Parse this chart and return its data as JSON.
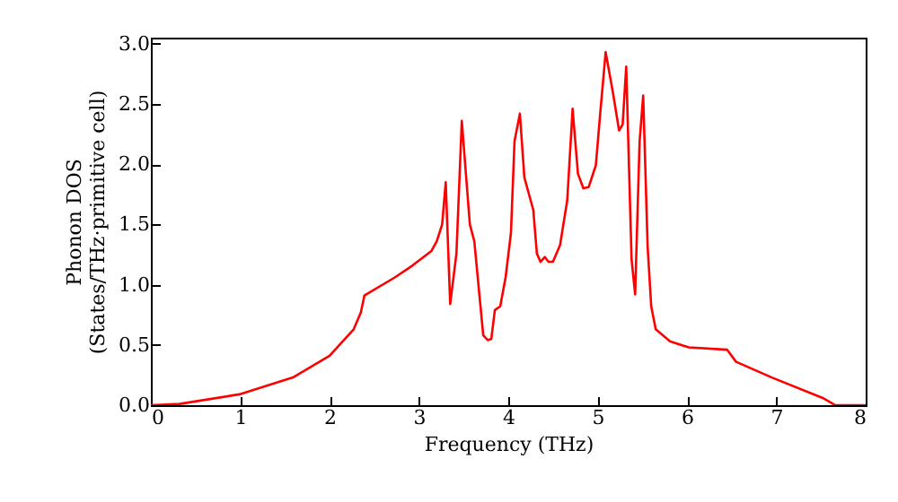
{
  "chart_data": {
    "type": "line",
    "xlabel": "Frequency (THz)",
    "ylabel": "Phonon DOS\n(States/THz·primitive cell)",
    "xlim": [
      0,
      8
    ],
    "xticks": [
      0,
      1,
      2,
      3,
      4,
      5,
      6,
      7,
      8
    ],
    "ylim": [
      0,
      3.05
    ],
    "yticks": [
      {
        "value": 0,
        "label": "0.0"
      },
      {
        "value": 0.5,
        "label": "0.5"
      },
      {
        "value": 1,
        "label": "1.0"
      },
      {
        "value": 1.5,
        "label": "1.5"
      },
      {
        "value": 2,
        "label": "2.0"
      },
      {
        "value": 2.5,
        "label": "2.5"
      },
      {
        "value": 3,
        "label": "3.0"
      }
    ],
    "grid": false,
    "marker": "none",
    "line_style": "solid",
    "series": [
      {
        "color": "#ff0000",
        "x": [
          0,
          0.32,
          0.99,
          1.59,
          2.0,
          2.27,
          2.35,
          2.39,
          2.73,
          2.93,
          3.14,
          3.2,
          3.26,
          3.3,
          3.35,
          3.42,
          3.48,
          3.57,
          3.62,
          3.72,
          3.77,
          3.81,
          3.85,
          3.91,
          3.97,
          4.03,
          4.07,
          4.13,
          4.18,
          4.28,
          4.32,
          4.36,
          4.41,
          4.45,
          4.5,
          4.58,
          4.66,
          4.72,
          4.78,
          4.84,
          4.9,
          4.98,
          5.03,
          5.09,
          5.17,
          5.24,
          5.28,
          5.32,
          5.38,
          5.42,
          5.47,
          5.51,
          5.56,
          5.6,
          5.65,
          5.81,
          6.02,
          6.45,
          6.55,
          6.95,
          7.52,
          7.66,
          8.0
        ],
        "values": [
          0,
          0.01,
          0.09,
          0.23,
          0.41,
          0.63,
          0.77,
          0.91,
          1.06,
          1.16,
          1.28,
          1.36,
          1.5,
          1.85,
          0.84,
          1.26,
          2.36,
          1.5,
          1.36,
          0.58,
          0.54,
          0.55,
          0.79,
          0.82,
          1.06,
          1.43,
          2.19,
          2.42,
          1.89,
          1.62,
          1.26,
          1.19,
          1.23,
          1.19,
          1.19,
          1.33,
          1.7,
          2.46,
          1.92,
          1.8,
          1.81,
          1.99,
          2.43,
          2.93,
          2.6,
          2.28,
          2.33,
          2.81,
          1.21,
          0.92,
          2.19,
          2.57,
          1.31,
          0.82,
          0.63,
          0.53,
          0.48,
          0.46,
          0.36,
          0.23,
          0.06,
          0,
          0
        ]
      }
    ]
  }
}
